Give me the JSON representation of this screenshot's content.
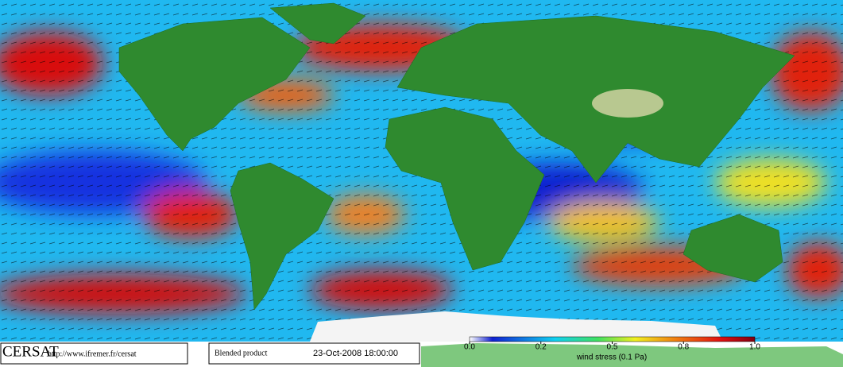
{
  "logo": "CERSAT",
  "url": "http://www.ifremer.fr/cersat",
  "product": "Blended product",
  "date": "23-Oct-2008 18:00:00",
  "colorbar": {
    "label": "wind stress (0.1 Pa)",
    "ticks": [
      {
        "value": 0,
        "label": "0.0"
      },
      0.2,
      0.5,
      0.8,
      {
        "value": 1,
        "label": "1.0"
      }
    ]
  }
}
